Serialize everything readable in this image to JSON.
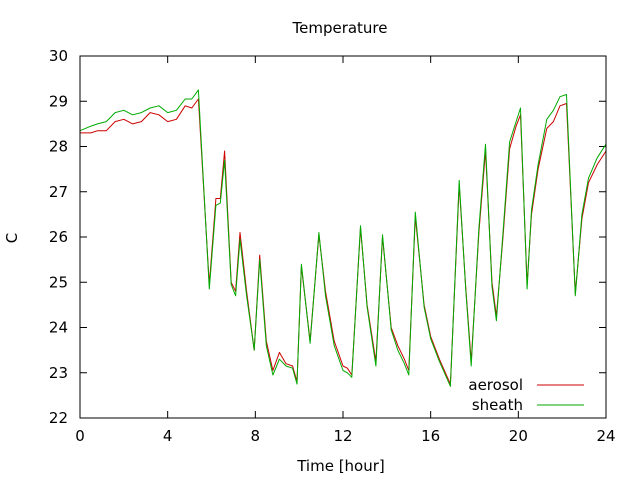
{
  "chart_data": {
    "type": "line",
    "title": "Temperature",
    "xlabel": "Time [hour]",
    "ylabel": "C",
    "xlim": [
      0,
      24
    ],
    "ylim": [
      22,
      30
    ],
    "xticks": [
      0,
      4,
      8,
      12,
      16,
      20,
      24
    ],
    "yticks": [
      22,
      23,
      24,
      25,
      26,
      27,
      28,
      29,
      30
    ],
    "grid": false,
    "legend_position": "bottom-right",
    "series": [
      {
        "name": "aerosol",
        "color": "#cc0000",
        "points": [
          [
            0,
            28.3
          ],
          [
            0.5,
            28.3
          ],
          [
            0.8,
            28.35
          ],
          [
            1.2,
            28.35
          ],
          [
            1.6,
            28.55
          ],
          [
            2.0,
            28.6
          ],
          [
            2.4,
            28.5
          ],
          [
            2.8,
            28.55
          ],
          [
            3.2,
            28.75
          ],
          [
            3.6,
            28.7
          ],
          [
            4.0,
            28.55
          ],
          [
            4.4,
            28.6
          ],
          [
            4.8,
            28.9
          ],
          [
            5.1,
            28.85
          ],
          [
            5.4,
            29.05
          ],
          [
            5.9,
            24.95
          ],
          [
            6.2,
            26.85
          ],
          [
            6.4,
            26.85
          ],
          [
            6.6,
            27.9
          ],
          [
            6.9,
            25.0
          ],
          [
            7.1,
            24.8
          ],
          [
            7.3,
            26.1
          ],
          [
            7.6,
            24.8
          ],
          [
            7.95,
            23.5
          ],
          [
            8.2,
            25.6
          ],
          [
            8.5,
            23.7
          ],
          [
            8.8,
            23.05
          ],
          [
            9.1,
            23.45
          ],
          [
            9.4,
            23.2
          ],
          [
            9.7,
            23.15
          ],
          [
            9.9,
            22.8
          ],
          [
            10.1,
            25.35
          ],
          [
            10.5,
            23.7
          ],
          [
            10.9,
            26.05
          ],
          [
            11.2,
            24.8
          ],
          [
            11.6,
            23.7
          ],
          [
            12.0,
            23.15
          ],
          [
            12.2,
            23.1
          ],
          [
            12.4,
            22.95
          ],
          [
            12.8,
            26.2
          ],
          [
            13.1,
            24.5
          ],
          [
            13.5,
            23.25
          ],
          [
            13.8,
            26.0
          ],
          [
            14.2,
            24.0
          ],
          [
            14.5,
            23.6
          ],
          [
            14.8,
            23.3
          ],
          [
            15.0,
            23.05
          ],
          [
            15.3,
            26.45
          ],
          [
            15.7,
            24.5
          ],
          [
            16.0,
            23.8
          ],
          [
            16.4,
            23.3
          ],
          [
            16.9,
            22.75
          ],
          [
            17.3,
            27.15
          ],
          [
            17.6,
            24.9
          ],
          [
            17.85,
            23.25
          ],
          [
            18.2,
            26.1
          ],
          [
            18.5,
            27.9
          ],
          [
            18.8,
            25.0
          ],
          [
            19.0,
            24.25
          ],
          [
            19.3,
            26.0
          ],
          [
            19.6,
            27.95
          ],
          [
            19.9,
            28.45
          ],
          [
            20.1,
            28.7
          ],
          [
            20.4,
            24.95
          ],
          [
            20.6,
            26.5
          ],
          [
            20.9,
            27.5
          ],
          [
            21.3,
            28.4
          ],
          [
            21.6,
            28.55
          ],
          [
            21.9,
            28.9
          ],
          [
            22.2,
            28.95
          ],
          [
            22.6,
            24.75
          ],
          [
            22.9,
            26.4
          ],
          [
            23.2,
            27.2
          ],
          [
            23.6,
            27.6
          ],
          [
            24.0,
            27.9
          ]
        ]
      },
      {
        "name": "sheath",
        "color": "#00aa00",
        "points": [
          [
            0,
            28.35
          ],
          [
            0.5,
            28.45
          ],
          [
            0.8,
            28.5
          ],
          [
            1.2,
            28.55
          ],
          [
            1.6,
            28.75
          ],
          [
            2.0,
            28.8
          ],
          [
            2.4,
            28.7
          ],
          [
            2.8,
            28.75
          ],
          [
            3.2,
            28.85
          ],
          [
            3.6,
            28.9
          ],
          [
            4.0,
            28.75
          ],
          [
            4.4,
            28.8
          ],
          [
            4.8,
            29.05
          ],
          [
            5.1,
            29.05
          ],
          [
            5.4,
            29.25
          ],
          [
            5.9,
            24.85
          ],
          [
            6.2,
            26.7
          ],
          [
            6.4,
            26.75
          ],
          [
            6.6,
            27.7
          ],
          [
            6.9,
            24.95
          ],
          [
            7.1,
            24.7
          ],
          [
            7.3,
            25.95
          ],
          [
            7.6,
            24.7
          ],
          [
            7.95,
            23.5
          ],
          [
            8.2,
            25.5
          ],
          [
            8.5,
            23.6
          ],
          [
            8.8,
            22.95
          ],
          [
            9.1,
            23.3
          ],
          [
            9.4,
            23.15
          ],
          [
            9.7,
            23.1
          ],
          [
            9.9,
            22.75
          ],
          [
            10.1,
            25.4
          ],
          [
            10.5,
            23.65
          ],
          [
            10.9,
            26.1
          ],
          [
            11.2,
            24.7
          ],
          [
            11.6,
            23.6
          ],
          [
            12.0,
            23.05
          ],
          [
            12.2,
            23.0
          ],
          [
            12.4,
            22.9
          ],
          [
            12.8,
            26.25
          ],
          [
            13.1,
            24.45
          ],
          [
            13.5,
            23.15
          ],
          [
            13.8,
            26.05
          ],
          [
            14.2,
            23.95
          ],
          [
            14.5,
            23.5
          ],
          [
            14.8,
            23.2
          ],
          [
            15.0,
            22.95
          ],
          [
            15.3,
            26.55
          ],
          [
            15.7,
            24.45
          ],
          [
            16.0,
            23.75
          ],
          [
            16.4,
            23.25
          ],
          [
            16.9,
            22.7
          ],
          [
            17.3,
            27.25
          ],
          [
            17.6,
            24.85
          ],
          [
            17.85,
            23.15
          ],
          [
            18.2,
            26.2
          ],
          [
            18.5,
            28.05
          ],
          [
            18.8,
            24.9
          ],
          [
            19.0,
            24.15
          ],
          [
            19.3,
            26.1
          ],
          [
            19.6,
            28.1
          ],
          [
            19.9,
            28.55
          ],
          [
            20.1,
            28.85
          ],
          [
            20.4,
            24.85
          ],
          [
            20.6,
            26.6
          ],
          [
            20.9,
            27.6
          ],
          [
            21.3,
            28.6
          ],
          [
            21.6,
            28.8
          ],
          [
            21.9,
            29.1
          ],
          [
            22.2,
            29.15
          ],
          [
            22.6,
            24.7
          ],
          [
            22.9,
            26.5
          ],
          [
            23.2,
            27.3
          ],
          [
            23.6,
            27.75
          ],
          [
            24.0,
            28.05
          ]
        ]
      }
    ]
  }
}
